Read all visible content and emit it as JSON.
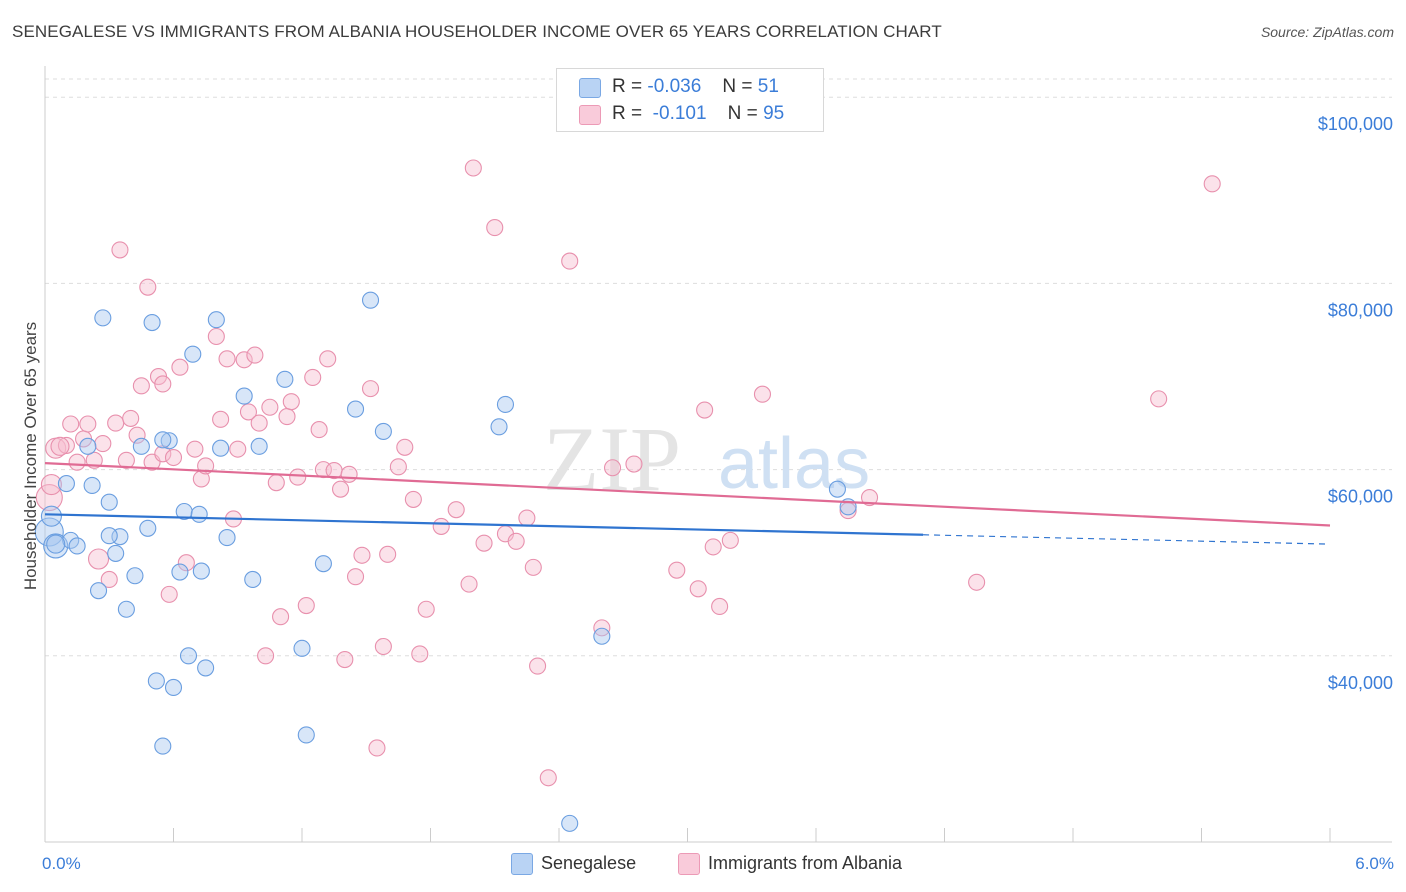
{
  "title": "SENEGALESE VS IMMIGRANTS FROM ALBANIA HOUSEHOLDER INCOME OVER 65 YEARS CORRELATION CHART",
  "source": "Source: ZipAtlas.com",
  "watermark": {
    "zip": "ZIP",
    "atlas": "atlas"
  },
  "legend": {
    "r_label": "R =",
    "n_label": "N =",
    "senegalese": {
      "r": "-0.036",
      "n": "51"
    },
    "albania": {
      "r": "-0.101",
      "n": "95"
    }
  },
  "colors": {
    "blue_fill": "#a9c8f0",
    "blue_stroke": "#6a9ee0",
    "blue_line": "#2f74d0",
    "pink_fill": "#f7bfd0",
    "pink_stroke": "#e890ad",
    "pink_line": "#e06b94",
    "grid": "#dddddd",
    "tick_text": "#3b7dd8"
  },
  "chart_data": {
    "type": "scatter",
    "title": "SENEGALESE VS IMMIGRANTS FROM ALBANIA HOUSEHOLDER INCOME OVER 65 YEARS CORRELATION CHART",
    "xlabel": "",
    "ylabel": "Householder Income Over 65 years",
    "xlim": [
      0,
      6.0
    ],
    "ylim": [
      20000,
      104000
    ],
    "x_tick_labels": [
      "0.0%",
      "6.0%"
    ],
    "y_ticks": [
      {
        "value": 40000,
        "label": "$40,000"
      },
      {
        "value": 60000,
        "label": "$60,000"
      },
      {
        "value": 80000,
        "label": "$80,000"
      },
      {
        "value": 100000,
        "label": "$100,000"
      }
    ],
    "grid": true,
    "series": [
      {
        "name": "Senegalese",
        "color": "blue",
        "r": -0.036,
        "n": 51,
        "trend": {
          "x0": 0.0,
          "y0": 55200,
          "x1": 4.1,
          "y1": 53000,
          "dash_to_x": 6.0,
          "dash_to_y": 52000
        },
        "points": [
          [
            0.02,
            53300,
            14
          ],
          [
            0.05,
            51800,
            12
          ],
          [
            0.03,
            55000,
            10
          ],
          [
            0.1,
            58500,
            8
          ],
          [
            0.12,
            52400,
            8
          ],
          [
            0.15,
            51800,
            8
          ],
          [
            0.2,
            62500,
            8
          ],
          [
            0.22,
            58300,
            8
          ],
          [
            0.25,
            47000,
            8
          ],
          [
            0.27,
            76300,
            8
          ],
          [
            0.3,
            56500,
            8
          ],
          [
            0.33,
            51000,
            8
          ],
          [
            0.35,
            52800,
            8
          ],
          [
            0.38,
            45000,
            8
          ],
          [
            0.42,
            48600,
            8
          ],
          [
            0.45,
            62500,
            8
          ],
          [
            0.48,
            53700,
            8
          ],
          [
            0.5,
            75800,
            8
          ],
          [
            0.52,
            37300,
            8
          ],
          [
            0.55,
            30300,
            8
          ],
          [
            0.58,
            63100,
            8
          ],
          [
            0.6,
            36600,
            8
          ],
          [
            0.63,
            49000,
            8
          ],
          [
            0.65,
            55500,
            8
          ],
          [
            0.67,
            40000,
            8
          ],
          [
            0.69,
            72400,
            8
          ],
          [
            0.72,
            55200,
            8
          ],
          [
            0.73,
            49100,
            8
          ],
          [
            0.75,
            38700,
            8
          ],
          [
            0.8,
            76100,
            8
          ],
          [
            0.82,
            62300,
            8
          ],
          [
            0.85,
            52700,
            8
          ],
          [
            0.93,
            67900,
            8
          ],
          [
            0.97,
            48200,
            8
          ],
          [
            1.0,
            62500,
            8
          ],
          [
            1.12,
            69700,
            8
          ],
          [
            1.2,
            40800,
            8
          ],
          [
            1.22,
            31500,
            8
          ],
          [
            1.3,
            49900,
            8
          ],
          [
            1.45,
            66500,
            8
          ],
          [
            1.52,
            78200,
            8
          ],
          [
            1.58,
            64100,
            8
          ],
          [
            2.12,
            64600,
            8
          ],
          [
            2.15,
            67000,
            8
          ],
          [
            2.45,
            22000,
            8
          ],
          [
            2.6,
            42100,
            8
          ],
          [
            3.7,
            57900,
            8
          ],
          [
            3.75,
            56000,
            8
          ],
          [
            0.05,
            52000,
            9
          ],
          [
            0.3,
            52900,
            8
          ],
          [
            0.55,
            63200,
            8
          ]
        ]
      },
      {
        "name": "Immigrants from Albania",
        "color": "pink",
        "r": -0.101,
        "n": 95,
        "trend": {
          "x0": 0.0,
          "y0": 60700,
          "x1": 6.0,
          "y1": 54000
        },
        "points": [
          [
            0.02,
            57000,
            13
          ],
          [
            0.03,
            58400,
            10
          ],
          [
            0.05,
            62300,
            10
          ],
          [
            0.1,
            62600,
            8
          ],
          [
            0.12,
            64900,
            8
          ],
          [
            0.15,
            60800,
            8
          ],
          [
            0.18,
            63300,
            8
          ],
          [
            0.2,
            64900,
            8
          ],
          [
            0.23,
            61000,
            8
          ],
          [
            0.25,
            50400,
            10
          ],
          [
            0.27,
            62800,
            8
          ],
          [
            0.3,
            48200,
            8
          ],
          [
            0.33,
            65000,
            8
          ],
          [
            0.35,
            83600,
            8
          ],
          [
            0.38,
            61000,
            8
          ],
          [
            0.4,
            65500,
            8
          ],
          [
            0.43,
            63700,
            8
          ],
          [
            0.45,
            69000,
            8
          ],
          [
            0.48,
            79600,
            8
          ],
          [
            0.5,
            60800,
            8
          ],
          [
            0.53,
            70000,
            8
          ],
          [
            0.55,
            61700,
            8
          ],
          [
            0.58,
            46600,
            8
          ],
          [
            0.6,
            61300,
            8
          ],
          [
            0.63,
            71000,
            8
          ],
          [
            0.66,
            50000,
            8
          ],
          [
            0.7,
            62200,
            8
          ],
          [
            0.73,
            59000,
            8
          ],
          [
            0.75,
            60400,
            8
          ],
          [
            0.8,
            74300,
            8
          ],
          [
            0.82,
            65400,
            8
          ],
          [
            0.85,
            71900,
            8
          ],
          [
            0.88,
            54700,
            8
          ],
          [
            0.9,
            62200,
            8
          ],
          [
            0.93,
            71800,
            8
          ],
          [
            0.95,
            66200,
            8
          ],
          [
            0.98,
            72300,
            8
          ],
          [
            1.0,
            65000,
            8
          ],
          [
            1.03,
            40000,
            8
          ],
          [
            1.05,
            66700,
            8
          ],
          [
            1.08,
            58600,
            8
          ],
          [
            1.1,
            44200,
            8
          ],
          [
            1.13,
            65700,
            8
          ],
          [
            1.15,
            67300,
            8
          ],
          [
            1.18,
            59200,
            8
          ],
          [
            1.22,
            45400,
            8
          ],
          [
            1.25,
            69900,
            8
          ],
          [
            1.28,
            64300,
            8
          ],
          [
            1.3,
            60000,
            8
          ],
          [
            1.32,
            71900,
            8
          ],
          [
            1.35,
            59900,
            8
          ],
          [
            1.38,
            57900,
            8
          ],
          [
            1.4,
            39600,
            8
          ],
          [
            1.42,
            59500,
            8
          ],
          [
            1.45,
            48500,
            8
          ],
          [
            1.48,
            50800,
            8
          ],
          [
            1.52,
            68700,
            8
          ],
          [
            1.55,
            30100,
            8
          ],
          [
            1.58,
            41000,
            8
          ],
          [
            1.6,
            50900,
            8
          ],
          [
            1.65,
            60300,
            8
          ],
          [
            1.68,
            62400,
            8
          ],
          [
            1.72,
            56800,
            8
          ],
          [
            1.75,
            40200,
            8
          ],
          [
            1.78,
            45000,
            8
          ],
          [
            1.85,
            53900,
            8
          ],
          [
            1.92,
            55700,
            8
          ],
          [
            1.98,
            47700,
            8
          ],
          [
            2.0,
            92400,
            8
          ],
          [
            2.05,
            52100,
            8
          ],
          [
            2.1,
            86000,
            8
          ],
          [
            2.15,
            53100,
            8
          ],
          [
            2.2,
            52300,
            8
          ],
          [
            2.25,
            54800,
            8
          ],
          [
            2.28,
            49500,
            8
          ],
          [
            2.3,
            38900,
            8
          ],
          [
            2.35,
            26900,
            8
          ],
          [
            2.45,
            82400,
            8
          ],
          [
            2.6,
            43000,
            8
          ],
          [
            2.65,
            60200,
            8
          ],
          [
            2.75,
            60600,
            8
          ],
          [
            2.95,
            49200,
            8
          ],
          [
            3.05,
            47200,
            8
          ],
          [
            3.08,
            66400,
            8
          ],
          [
            3.12,
            51700,
            8
          ],
          [
            3.15,
            45300,
            8
          ],
          [
            3.2,
            52400,
            8
          ],
          [
            3.35,
            68100,
            8
          ],
          [
            3.75,
            55600,
            8
          ],
          [
            3.85,
            57000,
            8
          ],
          [
            4.35,
            47900,
            8
          ],
          [
            5.2,
            67600,
            8
          ],
          [
            5.45,
            90700,
            8
          ],
          [
            0.07,
            62500,
            9
          ],
          [
            0.55,
            69200,
            8
          ]
        ]
      }
    ]
  },
  "bottom_legend": {
    "senegalese": "Senegalese",
    "albania": "Immigrants from Albania"
  }
}
